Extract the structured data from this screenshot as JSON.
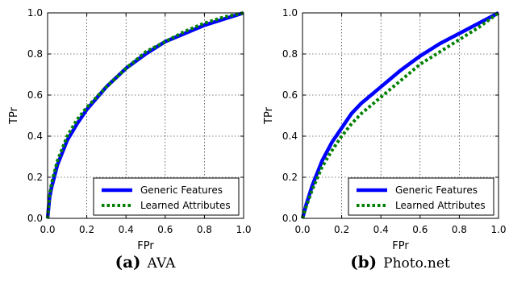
{
  "chart_data": [
    {
      "type": "line",
      "caption_letter": "(a)",
      "caption_name": "AVA",
      "xlabel": "FPr",
      "ylabel": "TPr",
      "xlim": [
        0,
        1
      ],
      "ylim": [
        0,
        1
      ],
      "xticks": [
        "0.0",
        "0.2",
        "0.4",
        "0.6",
        "0.8",
        "1.0"
      ],
      "yticks": [
        "0.0",
        "0.2",
        "0.4",
        "0.6",
        "0.8",
        "1.0"
      ],
      "grid": true,
      "legend_position": "bottom-right",
      "series": [
        {
          "name": "Generic Features",
          "color": "#0000ff",
          "style": "solid",
          "x": [
            0.0,
            0.01,
            0.02,
            0.05,
            0.1,
            0.15,
            0.2,
            0.3,
            0.4,
            0.5,
            0.6,
            0.7,
            0.8,
            0.9,
            1.0
          ],
          "y": [
            0.0,
            0.1,
            0.15,
            0.26,
            0.38,
            0.46,
            0.53,
            0.64,
            0.73,
            0.8,
            0.86,
            0.9,
            0.94,
            0.97,
            1.0
          ]
        },
        {
          "name": "Learned Attributes",
          "color": "#008000",
          "style": "dotted",
          "x": [
            0.0,
            0.01,
            0.02,
            0.05,
            0.1,
            0.15,
            0.2,
            0.3,
            0.4,
            0.5,
            0.6,
            0.7,
            0.8,
            0.9,
            1.0
          ],
          "y": [
            0.0,
            0.11,
            0.17,
            0.28,
            0.4,
            0.48,
            0.54,
            0.64,
            0.73,
            0.81,
            0.86,
            0.91,
            0.95,
            0.98,
            1.0
          ]
        }
      ]
    },
    {
      "type": "line",
      "caption_letter": "(b)",
      "caption_name": "Photo.net",
      "xlabel": "FPr",
      "ylabel": "TPr",
      "xlim": [
        0,
        1
      ],
      "ylim": [
        0,
        1
      ],
      "xticks": [
        "0.0",
        "0.2",
        "0.4",
        "0.6",
        "0.8",
        "1.0"
      ],
      "yticks": [
        "0.0",
        "0.2",
        "0.4",
        "0.6",
        "0.8",
        "1.0"
      ],
      "grid": true,
      "legend_position": "bottom-right",
      "series": [
        {
          "name": "Generic Features",
          "color": "#0000ff",
          "style": "solid",
          "x": [
            0.0,
            0.02,
            0.05,
            0.1,
            0.15,
            0.2,
            0.25,
            0.3,
            0.35,
            0.4,
            0.5,
            0.6,
            0.7,
            0.8,
            0.9,
            1.0
          ],
          "y": [
            0.0,
            0.07,
            0.16,
            0.28,
            0.37,
            0.44,
            0.51,
            0.56,
            0.6,
            0.64,
            0.72,
            0.79,
            0.85,
            0.9,
            0.95,
            1.0
          ]
        },
        {
          "name": "Learned Attributes",
          "color": "#008000",
          "style": "dotted",
          "x": [
            0.0,
            0.02,
            0.05,
            0.1,
            0.15,
            0.2,
            0.25,
            0.3,
            0.35,
            0.4,
            0.5,
            0.6,
            0.7,
            0.8,
            0.9,
            1.0
          ],
          "y": [
            0.0,
            0.06,
            0.14,
            0.25,
            0.33,
            0.4,
            0.46,
            0.51,
            0.55,
            0.59,
            0.67,
            0.75,
            0.81,
            0.87,
            0.93,
            1.0
          ]
        }
      ]
    }
  ]
}
